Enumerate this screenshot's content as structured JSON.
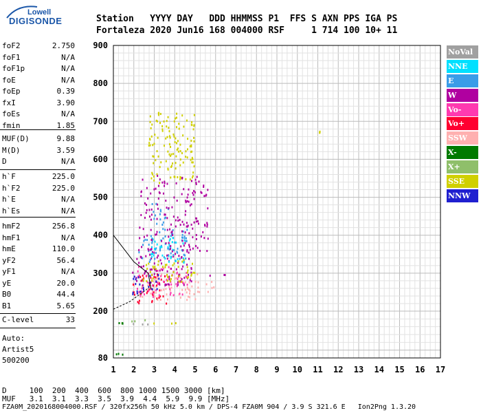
{
  "logo": {
    "top": "Lowell",
    "bottom": "DIGISONDE"
  },
  "header": {
    "labels": "Station   YYYY DAY   DDD HHMMSS P1  FFS S AXN PPS IGA PS",
    "values": "Fortaleza 2020 Jun16 168 004000 RSF     1 714 100 10+ 11"
  },
  "params": {
    "group1": [
      {
        "name": "foF2",
        "value": "2.750"
      },
      {
        "name": "foF1",
        "value": "N/A"
      },
      {
        "name": "foF1p",
        "value": "N/A"
      },
      {
        "name": "foE",
        "value": "N/A"
      },
      {
        "name": "foEp",
        "value": "0.39"
      },
      {
        "name": "fxI",
        "value": "3.90"
      },
      {
        "name": "foEs",
        "value": "N/A"
      },
      {
        "name": "fmin",
        "value": "1.85"
      }
    ],
    "group2": [
      {
        "name": "MUF(D)",
        "value": "9.88"
      },
      {
        "name": "M(D)",
        "value": "3.59"
      },
      {
        "name": "D",
        "value": "N/A"
      }
    ],
    "group3": [
      {
        "name": "h`F",
        "value": "225.0"
      },
      {
        "name": "h`F2",
        "value": "225.0"
      },
      {
        "name": "h`E",
        "value": "N/A"
      },
      {
        "name": "h`Es",
        "value": "N/A"
      }
    ],
    "group4": [
      {
        "name": "hmF2",
        "value": "256.8"
      },
      {
        "name": "hmF1",
        "value": "N/A"
      },
      {
        "name": "hmE",
        "value": "110.0"
      },
      {
        "name": "yF2",
        "value": "56.4"
      },
      {
        "name": "yF1",
        "value": "N/A"
      },
      {
        "name": "yE",
        "value": "20.0"
      },
      {
        "name": "B0",
        "value": "44.4"
      },
      {
        "name": "B1",
        "value": "5.65"
      }
    ],
    "clevel": {
      "name": "C-level",
      "value": "33"
    }
  },
  "info": {
    "line1": "Auto:",
    "line2": "Artist5",
    "line3": "500200"
  },
  "bottom": {
    "d_row": "D     100  200  400  600  800 1000 1500 3000 [km]",
    "muf_row": "MUF   3.1  3.1  3.3  3.5  3.9  4.4  5.9  9.9 [MHz]",
    "footer": "FZA0M_2020168004000.RSF / 320fx256h 50 kHz 5.0 km / DPS-4 FZA0M 904 / 3.9 S 321.6 E   Ion2Png 1.3.20"
  },
  "legend": [
    {
      "label": "NoVal",
      "color": "#a0a0a0"
    },
    {
      "label": "NNE",
      "color": "#00e0ff"
    },
    {
      "label": "E",
      "color": "#3a9ce8"
    },
    {
      "label": "W",
      "color": "#b000a0"
    },
    {
      "label": "Vo-",
      "color": "#ff3ab0"
    },
    {
      "label": "Vo+",
      "color": "#ff0030"
    },
    {
      "label": "SSW",
      "color": "#ffb0b0"
    },
    {
      "label": "X-",
      "color": "#007a00"
    },
    {
      "label": "X+",
      "color": "#8fbf6a"
    },
    {
      "label": "SSE",
      "color": "#d0d000"
    },
    {
      "label": "NNW",
      "color": "#2020d0"
    }
  ],
  "chart_data": {
    "type": "scatter",
    "xlim": [
      1,
      17
    ],
    "ylim": [
      80,
      900
    ],
    "x_ticks": [
      "1",
      "2",
      "3",
      "4",
      "5",
      "6",
      "7",
      "8",
      "9",
      "10",
      "11",
      "12",
      "13",
      "14",
      "15",
      "16",
      "17"
    ],
    "y_ticks": [
      "900",
      "800",
      "700",
      "600",
      "500",
      "400",
      "300",
      "200",
      "80"
    ],
    "grid": true,
    "legend_position": "right",
    "clusters": [
      {
        "series": "X+",
        "x": [
          1.2,
          1.5
        ],
        "y": [
          170,
          172
        ]
      },
      {
        "series": "X-",
        "x": [
          1.2,
          1.5
        ],
        "y": [
          170,
          172
        ]
      },
      {
        "series": "NoVal",
        "x": [
          1.7,
          2.9
        ],
        "y": [
          168,
          170
        ]
      },
      {
        "series": "SSE",
        "x": [
          2.8,
          4.2
        ],
        "y": [
          170,
          172
        ]
      },
      {
        "series": "X+",
        "x": [
          1.6,
          2.6
        ],
        "y": [
          174,
          180
        ]
      },
      {
        "series": "X-",
        "x": [
          1.05,
          1.5
        ],
        "y": [
          90,
          96
        ]
      },
      {
        "series": "SSW",
        "x": [
          1.9,
          5.9
        ],
        "y": [
          232,
          300
        ]
      },
      {
        "series": "Vo+",
        "x": [
          1.9,
          3.6
        ],
        "y": [
          220,
          300
        ]
      },
      {
        "series": "Vo-",
        "x": [
          2.1,
          4.6
        ],
        "y": [
          240,
          320
        ]
      },
      {
        "series": "W",
        "x": [
          1.9,
          4.9
        ],
        "y": [
          270,
          360
        ]
      },
      {
        "series": "E",
        "x": [
          2.2,
          4.6
        ],
        "y": [
          330,
          420
        ]
      },
      {
        "series": "NNE",
        "x": [
          2.8,
          4.6
        ],
        "y": [
          330,
          400
        ]
      },
      {
        "series": "SSE",
        "x": [
          2.4,
          5.0
        ],
        "y": [
          280,
          340
        ]
      },
      {
        "series": "NNW",
        "x": [
          1.9,
          3.2
        ],
        "y": [
          245,
          300
        ]
      },
      {
        "series": "SSE",
        "x": [
          2.7,
          5.0
        ],
        "y": [
          540,
          730
        ]
      },
      {
        "series": "E",
        "x": [
          2.8,
          3.7
        ],
        "y": [
          430,
          490
        ]
      },
      {
        "series": "W",
        "x": [
          2.2,
          5.6
        ],
        "y": [
          360,
          560
        ]
      },
      {
        "series": "SSE",
        "x": [
          11.05,
          11.1
        ],
        "y": [
          672,
          676
        ]
      },
      {
        "series": "W",
        "x": [
          5.6,
          6.5
        ],
        "y": [
          296,
          302
        ]
      }
    ]
  }
}
